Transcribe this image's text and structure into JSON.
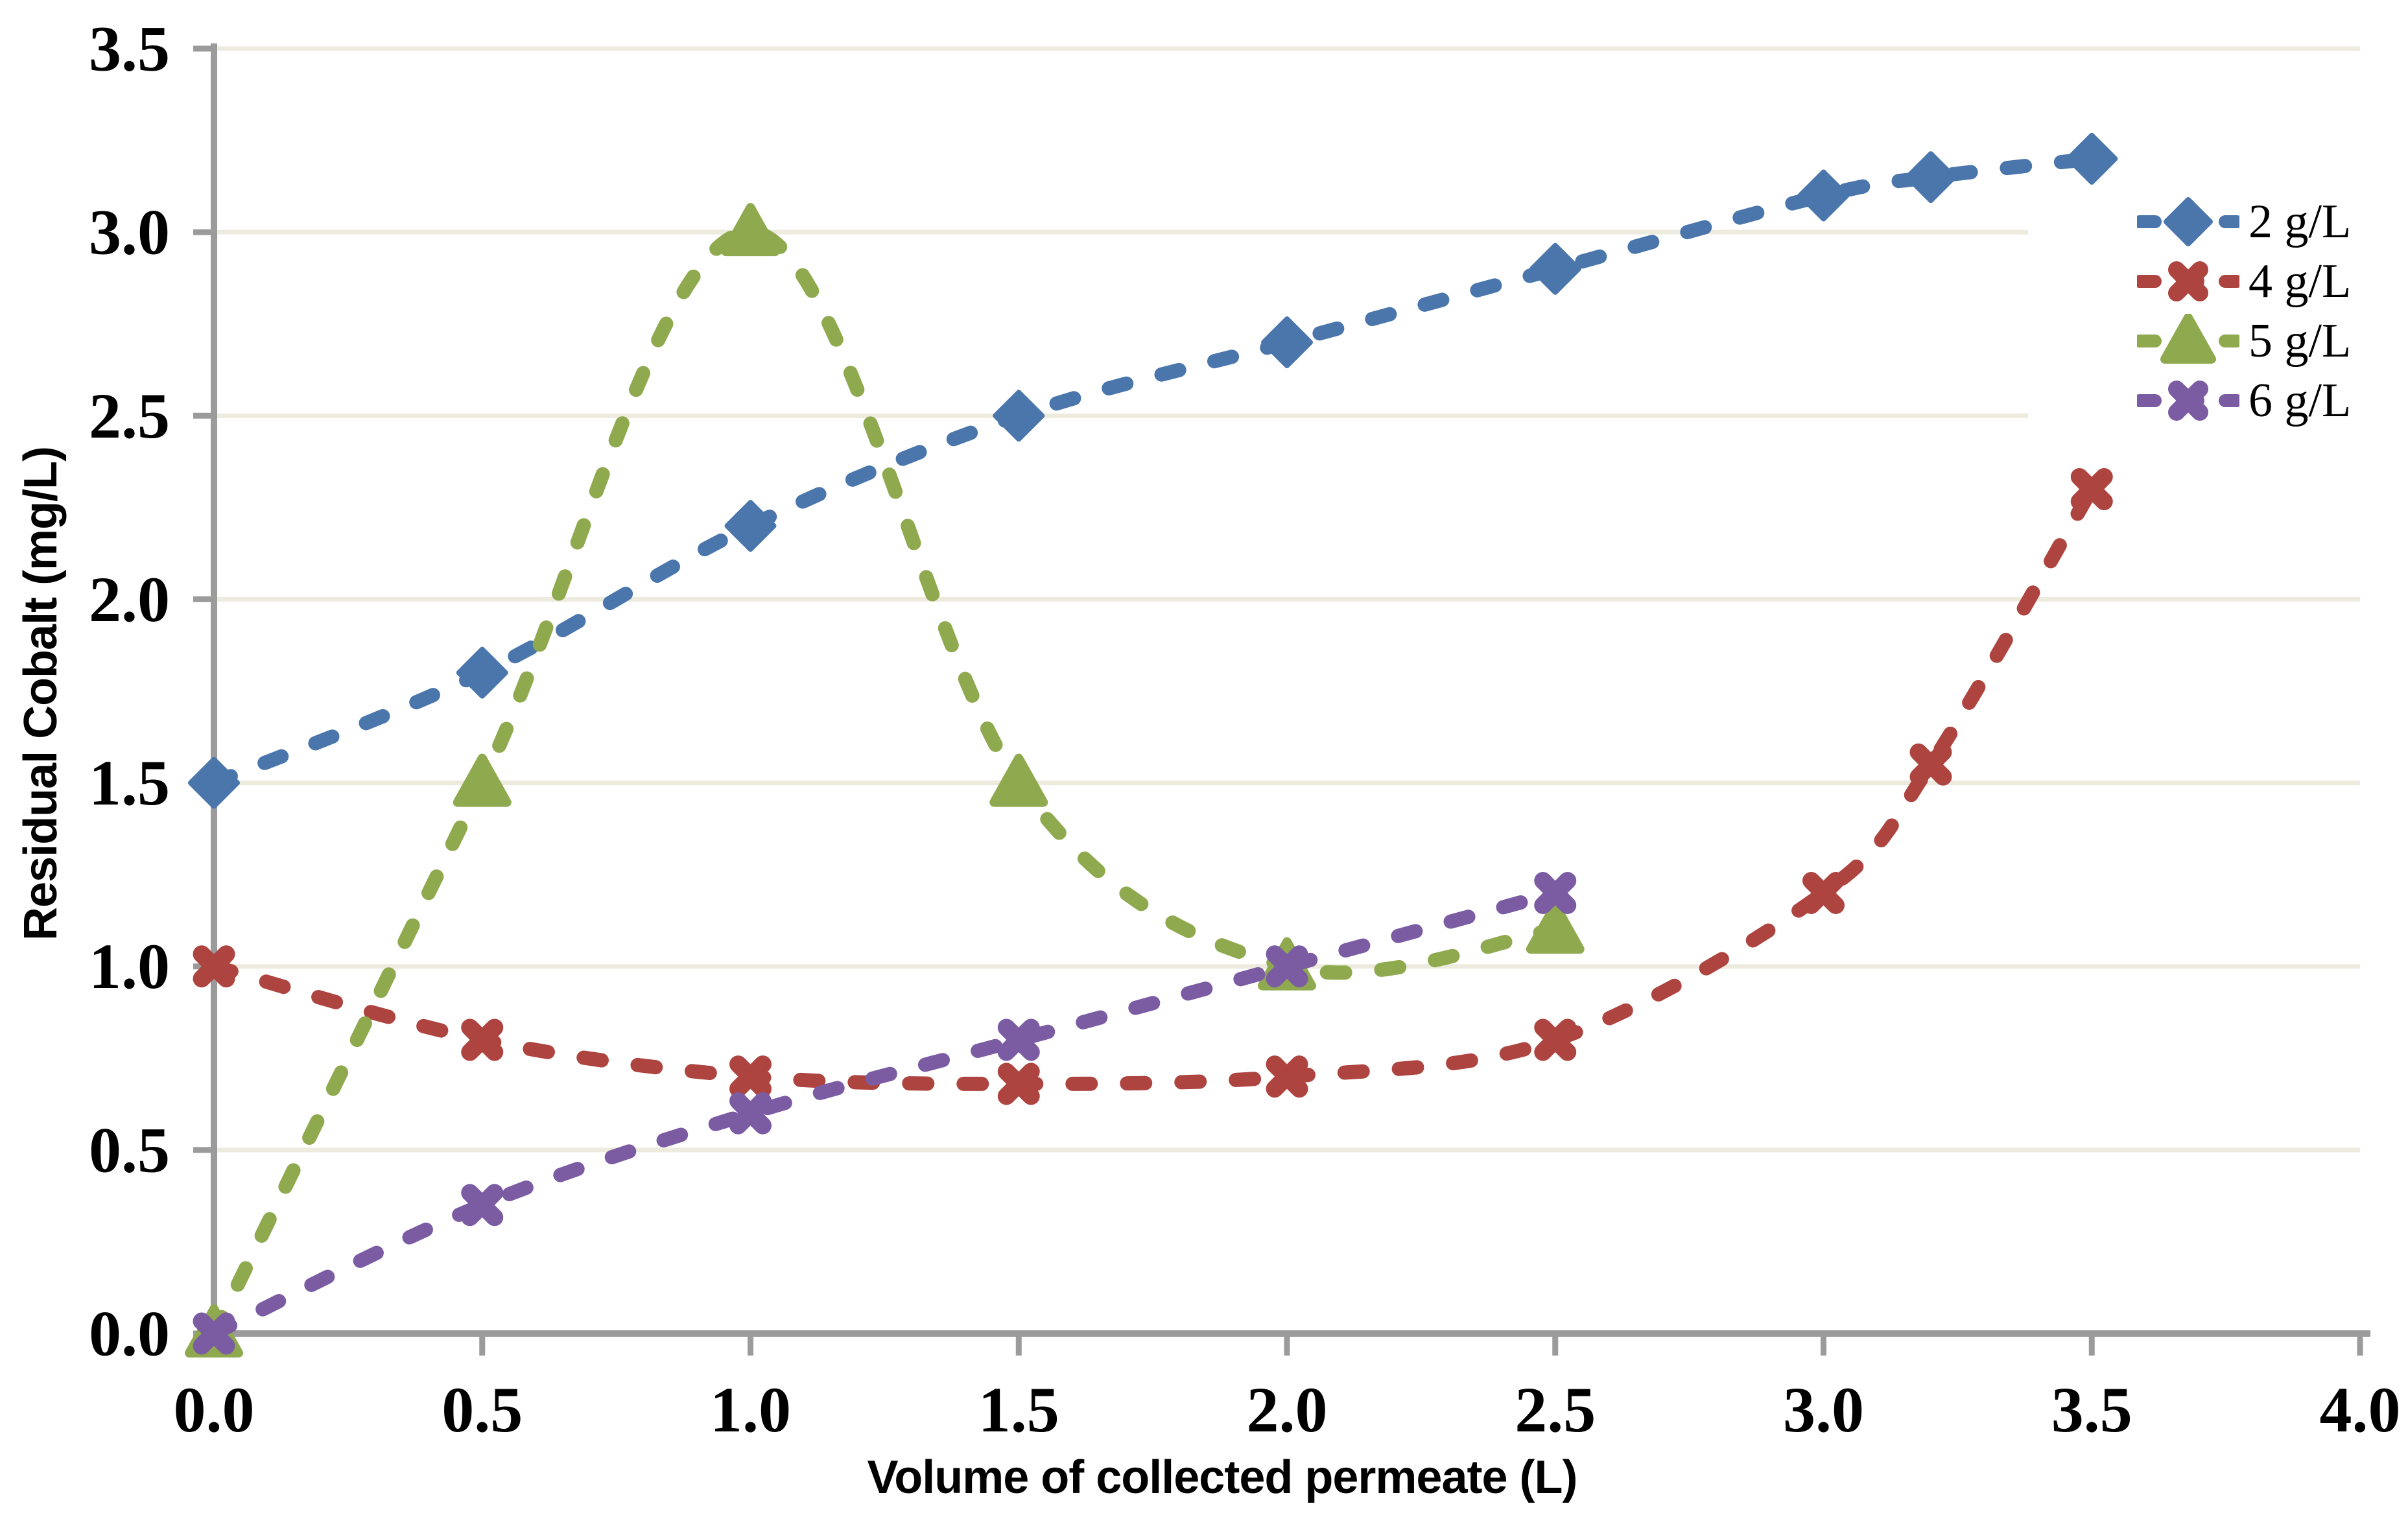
{
  "figure": {
    "background": "#ffffff",
    "axis_color": "#9b9b9b",
    "gridline_color": "#edeade",
    "text_color": "#000000"
  },
  "chart_data": {
    "type": "line",
    "title": "",
    "xlabel": "Volume of collected permeate (L)",
    "ylabel": "Residual Cobalt (mg/L)",
    "xlim": [
      0.0,
      4.0
    ],
    "ylim": [
      0.0,
      3.5
    ],
    "grid": "horizontal-only",
    "line_style": "dashed-smooth",
    "legend_position": "inside-top-right",
    "x_ticks": [
      0.0,
      0.5,
      1.0,
      1.5,
      2.0,
      2.5,
      3.0,
      3.5,
      4.0
    ],
    "x_tick_labels": [
      "0.0",
      "0.5",
      "1.0",
      "1.5",
      "2.0",
      "2.5",
      "3.0",
      "3.5",
      "4.0"
    ],
    "y_ticks": [
      0.0,
      0.5,
      1.0,
      1.5,
      2.0,
      2.5,
      3.0,
      3.5
    ],
    "y_tick_labels": [
      "0.0",
      "0.5",
      "1.0",
      "1.5",
      "2.0",
      "2.5",
      "3.0",
      "3.5"
    ],
    "series": [
      {
        "name": "2 g/L",
        "color": "#4a76ac",
        "marker": "diamond",
        "x": [
          0.0,
          0.5,
          1.0,
          1.5,
          2.0,
          2.5,
          3.0,
          3.2,
          3.5
        ],
        "y": [
          1.5,
          1.8,
          2.2,
          2.5,
          2.7,
          2.9,
          3.1,
          3.15,
          3.2
        ]
      },
      {
        "name": "4 g/L",
        "color": "#ae443f",
        "marker": "x",
        "x": [
          0.0,
          0.5,
          1.0,
          1.5,
          2.0,
          2.5,
          3.0,
          3.2,
          3.5
        ],
        "y": [
          1.0,
          0.8,
          0.7,
          0.68,
          0.7,
          0.8,
          1.2,
          1.55,
          2.3
        ]
      },
      {
        "name": "5 g/L",
        "color": "#8faa4e",
        "marker": "triangle",
        "x": [
          0.0,
          0.5,
          1.0,
          1.5,
          2.0,
          2.5
        ],
        "y": [
          0.0,
          1.5,
          3.0,
          1.5,
          1.0,
          1.1
        ]
      },
      {
        "name": "6 g/L",
        "color": "#7b5ca3",
        "marker": "x",
        "x": [
          0.0,
          0.5,
          1.0,
          1.5,
          2.0,
          2.5
        ],
        "y": [
          0.0,
          0.35,
          0.6,
          0.8,
          1.0,
          1.2
        ]
      }
    ]
  }
}
